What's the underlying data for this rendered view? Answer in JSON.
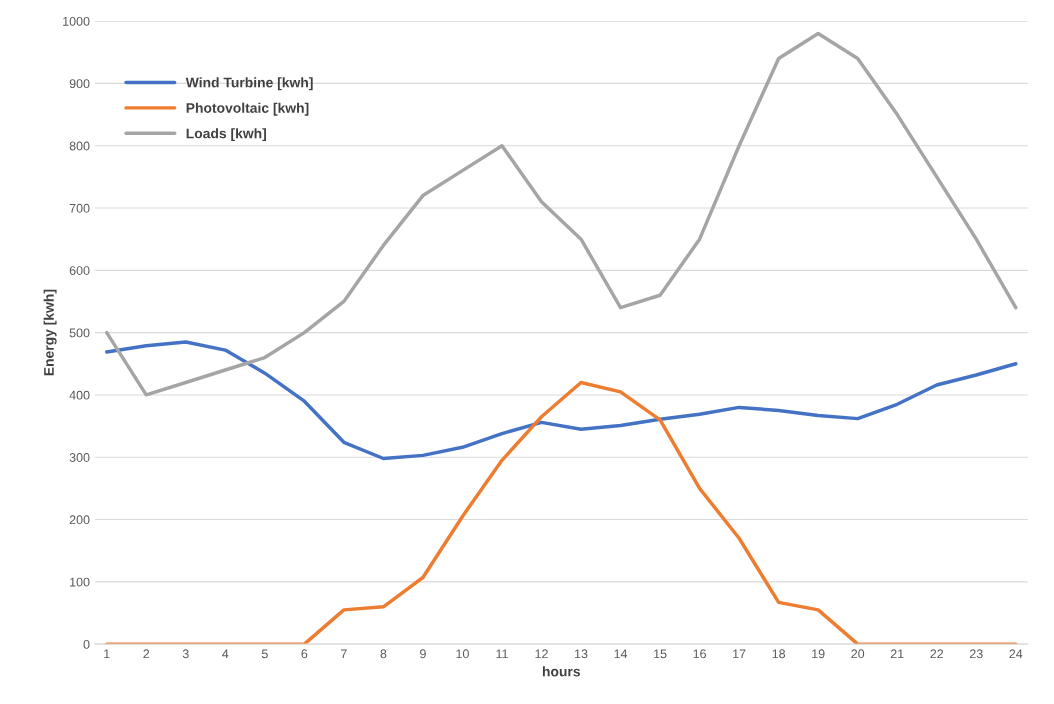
{
  "chart_data": {
    "type": "line",
    "xlabel": "hours",
    "ylabel": "Energy [kwh]",
    "categories": [
      "1",
      "2",
      "3",
      "4",
      "5",
      "6",
      "7",
      "8",
      "9",
      "10",
      "11",
      "12",
      "13",
      "14",
      "15",
      "16",
      "17",
      "18",
      "19",
      "20",
      "21",
      "22",
      "23",
      "24"
    ],
    "series": [
      {
        "name": "Wind Turbine [kwh]",
        "color": "#4472c4",
        "values": [
          469,
          479,
          485,
          472,
          435,
          390,
          324,
          298,
          303,
          316,
          338,
          356,
          345,
          351,
          361,
          369,
          380,
          375,
          367,
          362,
          385,
          416,
          432,
          450
        ]
      },
      {
        "name": "Photovoltaic [kwh]",
        "color": "#ed7d31",
        "values": [
          0,
          0,
          0,
          0,
          0,
          0,
          55,
          60,
          107,
          205,
          295,
          365,
          420,
          405,
          360,
          250,
          170,
          67,
          55,
          0,
          0,
          0,
          0,
          0
        ]
      },
      {
        "name": "Loads [kwh]",
        "color": "#a5a5a5",
        "values": [
          500,
          400,
          420,
          440,
          460,
          500,
          550,
          640,
          720,
          760,
          800,
          710,
          650,
          540,
          560,
          650,
          800,
          940,
          980,
          940,
          850,
          750,
          650,
          540
        ]
      }
    ],
    "ylim": [
      0,
      1000
    ],
    "yticks": [
      0,
      100,
      200,
      300,
      400,
      500,
      600,
      700,
      800,
      900,
      1000
    ],
    "grid": "y",
    "legend": "top left",
    "marker": "none",
    "line_style": "solid"
  }
}
